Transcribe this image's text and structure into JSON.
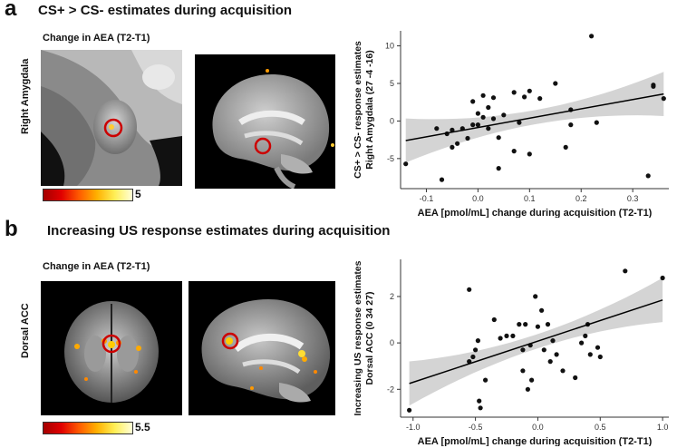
{
  "panel_a": {
    "letter": "a",
    "title": "CS+ > CS- estimates during acquisition",
    "caption": "Change in AEA (T2-T1)",
    "region_label": "Right Amygdala",
    "colorbar_max": "5"
  },
  "panel_b": {
    "letter": "b",
    "title": "Increasing US response estimates during acquisition",
    "caption": "Change in AEA (T2-T1)",
    "region_label": "Dorsal ACC",
    "colorbar_max": "5.5"
  },
  "chart_data": [
    {
      "type": "scatter",
      "xlabel": "AEA [pmol/mL] change during acquisition (T2-T1)",
      "ylabel": [
        "CS+ > CS- response estimates",
        "Right Amygdala (27 -4 -16)"
      ],
      "xlim": [
        -0.15,
        0.37
      ],
      "ylim": [
        -9,
        12
      ],
      "xticks": [
        -0.1,
        0.0,
        0.1,
        0.2,
        0.3
      ],
      "xtick_labels": [
        "-0.1",
        "0.0",
        "0.1",
        "0.2",
        "0.3"
      ],
      "yticks": [
        -5,
        0,
        5,
        10
      ],
      "ytick_labels": [
        "-5",
        "0",
        "5",
        "10"
      ],
      "grid": false,
      "fit_line": {
        "x": [
          -0.14,
          0.36
        ],
        "y": [
          -2.6,
          3.6
        ]
      },
      "points": [
        [
          -0.14,
          -5.7
        ],
        [
          -0.08,
          -1.0
        ],
        [
          -0.07,
          -7.8
        ],
        [
          -0.06,
          -1.7
        ],
        [
          -0.05,
          -3.5
        ],
        [
          -0.05,
          -1.2
        ],
        [
          -0.04,
          -3.0
        ],
        [
          -0.03,
          -1.0
        ],
        [
          -0.02,
          -2.3
        ],
        [
          -0.01,
          -0.5
        ],
        [
          -0.01,
          2.6
        ],
        [
          0.0,
          1.0
        ],
        [
          0.0,
          -0.5
        ],
        [
          0.01,
          3.4
        ],
        [
          0.01,
          0.5
        ],
        [
          0.02,
          1.8
        ],
        [
          0.02,
          -1.0
        ],
        [
          0.03,
          3.1
        ],
        [
          0.03,
          0.3
        ],
        [
          0.04,
          -2.2
        ],
        [
          0.04,
          -6.3
        ],
        [
          0.05,
          0.8
        ],
        [
          0.07,
          3.8
        ],
        [
          0.07,
          -4.0
        ],
        [
          0.08,
          -0.2
        ],
        [
          0.09,
          3.2
        ],
        [
          0.1,
          4.0
        ],
        [
          0.1,
          -4.4
        ],
        [
          0.12,
          3.0
        ],
        [
          0.15,
          5.0
        ],
        [
          0.17,
          -3.5
        ],
        [
          0.18,
          -0.5
        ],
        [
          0.18,
          1.5
        ],
        [
          0.22,
          11.3
        ],
        [
          0.23,
          -0.2
        ],
        [
          0.33,
          -7.3
        ],
        [
          0.34,
          4.8
        ],
        [
          0.34,
          4.6
        ],
        [
          0.36,
          3.0
        ]
      ]
    },
    {
      "type": "scatter",
      "xlabel": "AEA [pmol/mL] change during acquisition (T2-T1)",
      "ylabel": [
        "Increasing US response estimates",
        "Dorsal ACC (0 34 27)"
      ],
      "xlim": [
        -1.1,
        1.05
      ],
      "ylim": [
        -3.2,
        3.6
      ],
      "xticks": [
        -1.0,
        -0.5,
        0.0,
        0.5,
        1.0
      ],
      "xtick_labels": [
        "-1.0",
        "-0.5",
        "0.0",
        "0.5",
        "1.0"
      ],
      "yticks": [
        -2,
        0,
        2
      ],
      "ytick_labels": [
        "-2",
        "0",
        "2"
      ],
      "grid": false,
      "fit_line": {
        "x": [
          -1.03,
          1.0
        ],
        "y": [
          -1.75,
          1.85
        ]
      },
      "points": [
        [
          -1.03,
          -2.9
        ],
        [
          -0.55,
          2.3
        ],
        [
          -0.55,
          -0.8
        ],
        [
          -0.52,
          -0.6
        ],
        [
          -0.5,
          -0.3
        ],
        [
          -0.48,
          0.1
        ],
        [
          -0.47,
          -2.5
        ],
        [
          -0.46,
          -2.8
        ],
        [
          -0.42,
          -1.6
        ],
        [
          -0.35,
          1.0
        ],
        [
          -0.3,
          0.2
        ],
        [
          -0.25,
          0.3
        ],
        [
          -0.2,
          0.3
        ],
        [
          -0.15,
          0.8
        ],
        [
          -0.12,
          -1.2
        ],
        [
          -0.12,
          -0.3
        ],
        [
          -0.1,
          0.8
        ],
        [
          -0.08,
          -2.0
        ],
        [
          -0.06,
          -0.1
        ],
        [
          -0.05,
          -1.6
        ],
        [
          -0.02,
          2.0
        ],
        [
          0.0,
          0.7
        ],
        [
          0.03,
          1.4
        ],
        [
          0.05,
          -0.3
        ],
        [
          0.08,
          0.8
        ],
        [
          0.1,
          -0.8
        ],
        [
          0.12,
          0.1
        ],
        [
          0.15,
          -0.5
        ],
        [
          0.2,
          -1.2
        ],
        [
          0.3,
          -1.5
        ],
        [
          0.35,
          0.0
        ],
        [
          0.38,
          0.3
        ],
        [
          0.4,
          0.8
        ],
        [
          0.42,
          -0.5
        ],
        [
          0.48,
          -0.2
        ],
        [
          0.5,
          -0.6
        ],
        [
          0.7,
          3.1
        ],
        [
          1.0,
          2.8
        ]
      ]
    }
  ]
}
